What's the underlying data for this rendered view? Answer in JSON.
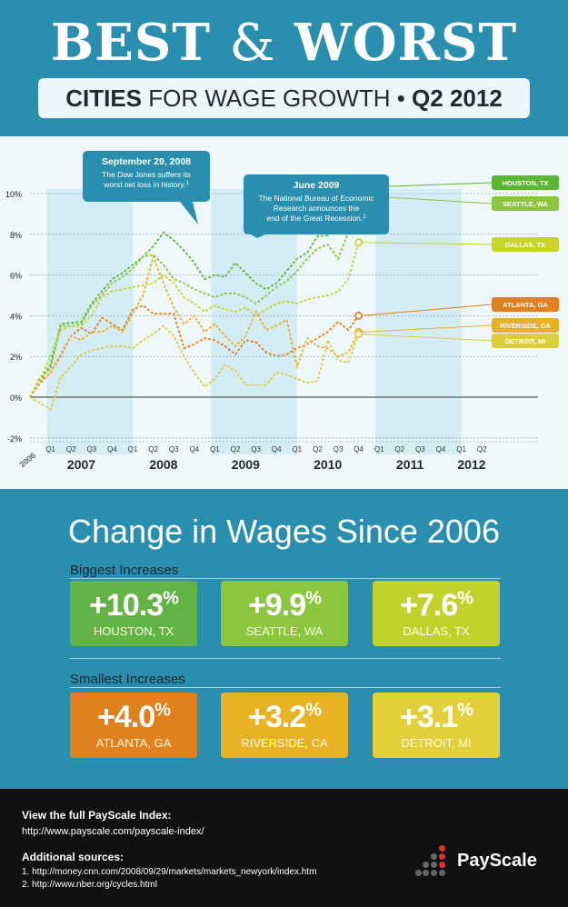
{
  "header": {
    "title_best": "BEST",
    "title_amp": "&",
    "title_worst": "WORST",
    "subtitle_cities": "CITIES",
    "subtitle_rest": " FOR WAGE GROWTH • ",
    "subtitle_period": "Q2 2012"
  },
  "colors": {
    "houston": "#5db535",
    "seattle": "#8cc63e",
    "dallas": "#c8d42a",
    "atlanta": "#e0801e",
    "riverside": "#e8b224",
    "detroit": "#dccd3c",
    "band": "#cde9f3",
    "callout": "#2a8fae"
  },
  "chart_data": {
    "type": "line",
    "xlabel": "",
    "ylabel": "",
    "ylim": [
      -2,
      10
    ],
    "y_ticks": [
      "-2%",
      "0%",
      "2%",
      "4%",
      "6%",
      "8%",
      "10%"
    ],
    "x_start_label": "2006",
    "quarter_labels": [
      "Q1",
      "Q2",
      "Q3",
      "Q4",
      "Q1",
      "Q2",
      "Q3",
      "Q4",
      "Q1",
      "Q2",
      "Q3",
      "Q4",
      "Q1",
      "Q2",
      "Q3",
      "Q4",
      "Q1",
      "Q2",
      "Q3",
      "Q4",
      "Q1",
      "Q2"
    ],
    "year_labels": [
      "2007",
      "2008",
      "2009",
      "2010",
      "2011",
      "2012"
    ],
    "points_per_quarter": 2,
    "series": [
      {
        "key": "houston",
        "name": "HOUSTON, TX",
        "values": [
          0,
          0.8,
          1.6,
          3.6,
          3.65,
          3.7,
          4.6,
          5.2,
          5.8,
          6.1,
          6.5,
          6.9,
          7.4,
          8.1,
          7.7,
          7.2,
          6.6,
          5.8,
          6.0,
          5.9,
          6.6,
          6.1,
          5.6,
          5.3,
          5.6,
          6.2,
          6.8,
          7.1,
          7.9,
          7.95,
          8.7,
          9.3,
          10.3
        ],
        "end_label": "10.3"
      },
      {
        "key": "seattle",
        "name": "SEATTLE, WA",
        "values": [
          0,
          1.0,
          1.4,
          3.5,
          3.5,
          3.6,
          4.5,
          5.0,
          5.6,
          5.9,
          6.3,
          6.9,
          7.0,
          6.5,
          5.8,
          5.6,
          5.3,
          5.1,
          4.9,
          5.1,
          5.1,
          4.9,
          4.6,
          5.0,
          5.4,
          5.7,
          6.2,
          6.8,
          7.3,
          7.5,
          6.8,
          8.1,
          9.9
        ],
        "end_label": "9.9"
      },
      {
        "key": "dallas",
        "name": "DALLAS, TX",
        "values": [
          0,
          0.9,
          2.0,
          3.3,
          3.5,
          3.5,
          4.0,
          4.9,
          5.2,
          5.3,
          5.4,
          5.5,
          5.6,
          6.0,
          5.6,
          4.9,
          4.6,
          4.2,
          4.5,
          4.3,
          4.2,
          4.4,
          4.0,
          4.3,
          4.6,
          4.7,
          4.6,
          4.8,
          4.9,
          5.0,
          5.2,
          5.8,
          7.6
        ],
        "end_label": "7.6"
      },
      {
        "key": "atlanta",
        "name": "ATLANTA, GA",
        "values": [
          0,
          0.7,
          1.2,
          2.1,
          3.0,
          3.4,
          3.1,
          3.9,
          3.6,
          3.3,
          4.3,
          4.5,
          4.1,
          4.1,
          4.1,
          2.4,
          2.6,
          2.9,
          2.8,
          2.5,
          2.1,
          2.8,
          2.7,
          2.2,
          2.0,
          2.1,
          2.4,
          2.6,
          2.9,
          3.2,
          3.7,
          3.3,
          4.0
        ],
        "end_label": "4.0"
      },
      {
        "key": "riverside",
        "name": "RIVERSIDE, CA",
        "values": [
          0,
          0.8,
          1.2,
          2.0,
          3.0,
          2.8,
          3.2,
          3.2,
          3.5,
          3.2,
          4.1,
          5.0,
          6.9,
          5.6,
          4.4,
          3.6,
          4.0,
          3.2,
          3.6,
          3.0,
          2.5,
          3.0,
          4.2,
          3.3,
          3.5,
          3.8,
          1.5,
          2.9,
          2.5,
          2.4,
          2.0,
          2.2,
          3.2
        ],
        "end_label": "3.2"
      },
      {
        "key": "detroit",
        "name": "DETROIT, MI",
        "values": [
          0,
          -0.3,
          -0.6,
          1.0,
          1.5,
          2.1,
          2.3,
          2.4,
          2.5,
          2.5,
          2.4,
          2.8,
          3.1,
          3.5,
          3.0,
          2.0,
          1.2,
          0.5,
          0.9,
          1.6,
          1.3,
          0.6,
          0.6,
          0.6,
          1.2,
          1.1,
          0.9,
          0.7,
          0.8,
          2.8,
          1.8,
          1.7,
          3.1
        ],
        "end_label": "3.1"
      }
    ],
    "annotations": [
      {
        "title": "September 29, 2008",
        "text": [
          "The Dow Jones suffers its",
          "worst net loss in history."
        ],
        "sup": "1"
      },
      {
        "title": "June 2009",
        "text": [
          "The National Bureau of Economic",
          "Research announces the",
          "end of the Great Recession."
        ],
        "sup": "2"
      }
    ],
    "grid": true,
    "legend": "end-of-line labels"
  },
  "wages": {
    "title": "Change in Wages Since 2006",
    "biggest_label": "Biggest Increases",
    "smallest_label": "Smallest Increases",
    "biggest": [
      {
        "value": "+10.3",
        "unit": "%",
        "city": "HOUSTON, TX",
        "color": "#63b447"
      },
      {
        "value": "+9.9",
        "unit": "%",
        "city": "SEATTLE, WA",
        "color": "#8cc63e"
      },
      {
        "value": "+7.6",
        "unit": "%",
        "city": "DALLAS, TX",
        "color": "#c4d02b"
      }
    ],
    "smallest": [
      {
        "value": "+4.0",
        "unit": "%",
        "city": "ATLANTA, GA",
        "color": "#e0801e"
      },
      {
        "value": "+3.2",
        "unit": "%",
        "city": "RIVERSIDE, CA",
        "color": "#e8b224"
      },
      {
        "value": "+3.1",
        "unit": "%",
        "city": "DETROIT, MI",
        "color": "#e3cf3a"
      }
    ]
  },
  "footer": {
    "index_heading": "View the full PayScale Index:",
    "index_url": "http://www.payscale.com/payscale-index/",
    "sources_heading": "Additional sources:",
    "source1": "1. http://money.cnn.com/2008/09/29/markets/markets_newyork/index.htm",
    "source2": "2. http://www.nber.org/cycles.html",
    "logo_text": "PayScale"
  }
}
